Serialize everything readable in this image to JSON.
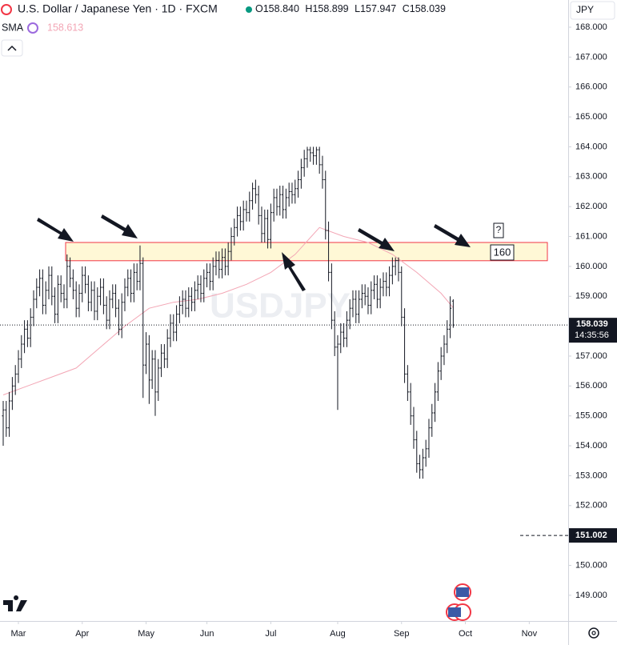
{
  "chart_data": {
    "type": "ohlc",
    "title": "U.S. Dollar / Japanese Yen · 1D · FXCM",
    "ohlc_labels": [
      "O",
      "H",
      "L",
      "C"
    ],
    "last_labels": [
      "158.840",
      "158.899",
      "157.947",
      "158.039"
    ],
    "countdown": "14:35:56",
    "currency": "JPY",
    "watermark": "USDJPY",
    "color": "#131722",
    "open": [
      155.0,
      155.2,
      154.6,
      155.5,
      156.0,
      156.4,
      156.9,
      157.4,
      157.9,
      157.6,
      158.3,
      158.9,
      159.3,
      159.6,
      158.7,
      159.2,
      159.7,
      159.0,
      158.4,
      159.4,
      159.1,
      158.9,
      160.0,
      159.6,
      159.2,
      158.6,
      159.1,
      159.7,
      159.4,
      158.8,
      159.2,
      158.5,
      159.0,
      159.3,
      158.7,
      158.2,
      158.9,
      159.1,
      158.6,
      157.9,
      158.8,
      159.3,
      159.6,
      159.1,
      159.8,
      159.5,
      160.1,
      156.7,
      157.4,
      156.2,
      156.9,
      155.8,
      156.6,
      157.1,
      156.9,
      157.6,
      158.1,
      157.8,
      158.4,
      158.7,
      158.9,
      158.6,
      159.0,
      158.8,
      159.2,
      159.4,
      159.1,
      159.6,
      159.8,
      159.5,
      160.0,
      160.2,
      159.9,
      160.3,
      160.0,
      160.5,
      161.0,
      161.3,
      161.7,
      161.5,
      161.9,
      161.8,
      162.2,
      162.6,
      162.4,
      161.7,
      161.1,
      161.6,
      160.9,
      161.8,
      162.3,
      162.0,
      162.4,
      161.9,
      162.3,
      162.5,
      162.4,
      162.6,
      162.9,
      163.3,
      163.6,
      163.9,
      163.8,
      163.7,
      163.9,
      163.4,
      162.9,
      161.2,
      159.8,
      158.2,
      157.3,
      157.4,
      157.8,
      157.6,
      158.2,
      158.6,
      158.9,
      158.4,
      158.9,
      159.1,
      159.0,
      158.7,
      159.2,
      159.4,
      158.9,
      159.3,
      159.5,
      159.3,
      159.7,
      160.0,
      160.2,
      159.8,
      158.3,
      156.4,
      155.8,
      155.0,
      154.2,
      153.4,
      153.2,
      153.6,
      153.9,
      154.6,
      155.1,
      155.8,
      156.5,
      157.0,
      157.4,
      157.9,
      158.84
    ],
    "high": [
      155.5,
      155.5,
      155.8,
      156.3,
      156.7,
      157.2,
      157.7,
      158.2,
      158.2,
      158.6,
      159.2,
      159.6,
      159.9,
      159.9,
      159.5,
      160.0,
      160.0,
      159.3,
      159.7,
      159.7,
      159.4,
      160.4,
      160.3,
      159.9,
      159.5,
      159.4,
      160.0,
      160.0,
      159.7,
      159.5,
      159.5,
      159.3,
      159.6,
      159.6,
      159.0,
      159.2,
      159.4,
      159.4,
      158.9,
      159.1,
      159.6,
      159.9,
      159.9,
      160.1,
      160.1,
      160.7,
      160.3,
      157.8,
      157.7,
      157.2,
      157.2,
      156.9,
      157.4,
      157.4,
      157.9,
      158.4,
      158.4,
      158.7,
      159.0,
      159.2,
      159.2,
      159.3,
      159.3,
      159.5,
      159.7,
      159.7,
      159.9,
      160.1,
      160.1,
      160.3,
      160.5,
      160.5,
      160.6,
      160.6,
      160.8,
      161.3,
      161.6,
      162.0,
      162.0,
      162.2,
      162.2,
      162.5,
      162.8,
      162.9,
      162.7,
      162.0,
      161.9,
      161.9,
      162.1,
      162.6,
      162.6,
      162.7,
      162.7,
      162.6,
      162.8,
      162.8,
      162.9,
      163.2,
      163.6,
      163.9,
      164.0,
      164.0,
      164.0,
      164.0,
      164.0,
      163.7,
      163.2,
      161.5,
      160.1,
      158.5,
      157.7,
      158.1,
      158.1,
      158.5,
      158.9,
      159.2,
      159.2,
      159.2,
      159.4,
      159.4,
      159.3,
      159.5,
      159.7,
      159.7,
      159.6,
      159.8,
      159.8,
      160.0,
      160.3,
      160.3,
      160.3,
      160.0,
      158.6,
      156.7,
      156.1,
      155.3,
      154.5,
      153.7,
      153.9,
      154.2,
      154.9,
      155.4,
      156.1,
      156.8,
      157.3,
      157.7,
      158.2,
      159.0,
      158.899
    ],
    "low": [
      154.0,
      154.3,
      154.3,
      155.2,
      155.7,
      156.1,
      156.6,
      157.1,
      157.3,
      157.3,
      158.0,
      158.6,
      159.0,
      158.4,
      158.4,
      158.9,
      158.7,
      158.1,
      158.1,
      158.8,
      158.6,
      158.6,
      159.3,
      158.9,
      158.3,
      158.3,
      158.8,
      159.1,
      158.5,
      158.5,
      158.2,
      158.2,
      158.7,
      158.4,
      157.9,
      157.9,
      158.6,
      158.3,
      157.7,
      157.6,
      158.5,
      159.0,
      158.8,
      158.8,
      159.2,
      159.2,
      155.6,
      156.4,
      155.4,
      155.9,
      155.0,
      155.5,
      156.3,
      156.6,
      156.6,
      157.3,
      157.5,
      157.5,
      158.1,
      158.4,
      158.3,
      158.3,
      158.5,
      158.5,
      158.9,
      158.8,
      158.8,
      159.3,
      159.2,
      159.2,
      159.7,
      159.6,
      159.6,
      159.7,
      159.7,
      160.2,
      160.7,
      161.0,
      161.2,
      161.2,
      161.5,
      161.5,
      161.9,
      162.1,
      161.4,
      160.8,
      160.8,
      160.6,
      160.6,
      161.5,
      161.7,
      161.7,
      161.6,
      161.6,
      162.0,
      162.1,
      162.1,
      162.3,
      162.6,
      163.0,
      163.3,
      163.5,
      163.4,
      163.4,
      163.1,
      162.6,
      160.9,
      159.5,
      157.9,
      157.0,
      155.2,
      157.1,
      157.3,
      157.3,
      157.9,
      158.3,
      158.1,
      158.1,
      158.6,
      158.7,
      158.4,
      158.4,
      158.9,
      158.6,
      158.6,
      159.0,
      159.0,
      159.0,
      159.4,
      159.7,
      159.5,
      158.0,
      156.1,
      155.5,
      154.7,
      153.9,
      153.1,
      152.9,
      152.9,
      153.3,
      153.6,
      154.3,
      154.8,
      155.5,
      156.2,
      156.7,
      157.1,
      157.6,
      157.947
    ],
    "close": [
      155.2,
      154.6,
      155.5,
      156.0,
      156.4,
      156.9,
      157.4,
      157.9,
      157.6,
      158.3,
      158.9,
      159.3,
      159.6,
      158.7,
      159.2,
      159.7,
      159.0,
      158.4,
      159.4,
      159.1,
      158.9,
      160.0,
      159.6,
      159.2,
      158.6,
      159.1,
      159.7,
      159.4,
      158.8,
      159.2,
      158.5,
      159.0,
      159.3,
      158.7,
      158.2,
      158.9,
      159.1,
      158.6,
      157.9,
      158.8,
      159.3,
      159.6,
      159.1,
      159.8,
      159.5,
      160.1,
      156.7,
      157.4,
      156.2,
      156.9,
      155.8,
      156.6,
      157.1,
      156.9,
      157.6,
      158.1,
      157.8,
      158.4,
      158.7,
      158.9,
      158.6,
      159.0,
      158.8,
      159.2,
      159.4,
      159.1,
      159.6,
      159.8,
      159.5,
      160.0,
      160.2,
      159.9,
      160.3,
      160.0,
      160.5,
      161.0,
      161.3,
      161.7,
      161.5,
      161.9,
      161.8,
      162.2,
      162.6,
      162.4,
      161.7,
      161.1,
      161.6,
      160.9,
      161.8,
      162.3,
      162.0,
      162.4,
      161.9,
      162.3,
      162.5,
      162.4,
      162.6,
      162.9,
      163.3,
      163.6,
      163.9,
      163.8,
      163.7,
      163.9,
      163.4,
      162.9,
      161.2,
      159.8,
      158.2,
      157.3,
      157.4,
      157.8,
      157.6,
      158.2,
      158.6,
      158.9,
      158.4,
      158.9,
      159.1,
      159.0,
      158.7,
      159.2,
      159.4,
      158.9,
      159.3,
      159.5,
      159.3,
      159.7,
      160.0,
      160.2,
      159.8,
      158.3,
      156.4,
      155.8,
      155.0,
      154.2,
      153.4,
      153.2,
      153.6,
      153.9,
      154.6,
      155.1,
      155.8,
      156.5,
      157.0,
      157.4,
      157.9,
      158.6,
      158.039
    ],
    "sma": {
      "name": "SMA",
      "color": "#f3a6b5",
      "x": [
        0,
        8,
        16,
        24,
        32,
        40,
        48,
        56,
        64,
        72,
        80,
        88,
        96,
        104,
        112,
        120,
        128,
        136,
        144,
        148
      ],
      "values": [
        155.7,
        156.0,
        156.3,
        156.6,
        157.3,
        158.0,
        158.6,
        158.8,
        158.9,
        159.1,
        159.4,
        159.8,
        160.4,
        161.3,
        161.0,
        160.8,
        160.4,
        159.8,
        159.1,
        158.613
      ]
    },
    "zone": [
      160.19,
      160.8
    ],
    "zone_label": "160",
    "zone_question": "?",
    "alert_line": 151.002,
    "xlim": [
      -1.05,
      185.8
    ],
    "xticks": [
      {
        "value": 5,
        "label": "Mar"
      },
      {
        "value": 26,
        "label": "Apr"
      },
      {
        "value": 47,
        "label": "May"
      },
      {
        "value": 67,
        "label": "Jun"
      },
      {
        "value": 88,
        "label": "Jul"
      },
      {
        "value": 110,
        "label": "Aug"
      },
      {
        "value": 131,
        "label": "Sep"
      },
      {
        "value": 152,
        "label": "Oct"
      },
      {
        "value": 173,
        "label": "Nov"
      }
    ],
    "ylim": [
      148.14,
      168.91
    ],
    "yticks": [
      {
        "value": 149,
        "label": "149.000"
      },
      {
        "value": 150,
        "label": "150.000"
      },
      {
        "value": 151,
        "label": "151.000"
      },
      {
        "value": 152,
        "label": "152.000"
      },
      {
        "value": 153,
        "label": "153.000"
      },
      {
        "value": 154,
        "label": "154.000"
      },
      {
        "value": 155,
        "label": "155.000"
      },
      {
        "value": 156,
        "label": "156.000"
      },
      {
        "value": 157,
        "label": "157.000"
      },
      {
        "value": 158,
        "label": "158.000"
      },
      {
        "value": 159,
        "label": "159.000"
      },
      {
        "value": 160,
        "label": "160.000"
      },
      {
        "value": 161,
        "label": "161.000"
      },
      {
        "value": 162,
        "label": "162.000"
      },
      {
        "value": 163,
        "label": "163.000"
      },
      {
        "value": 164,
        "label": "164.000"
      },
      {
        "value": 165,
        "label": "165.000"
      },
      {
        "value": 166,
        "label": "166.000"
      },
      {
        "value": 167,
        "label": "167.000"
      },
      {
        "value": 168,
        "label": "168.000"
      }
    ]
  }
}
